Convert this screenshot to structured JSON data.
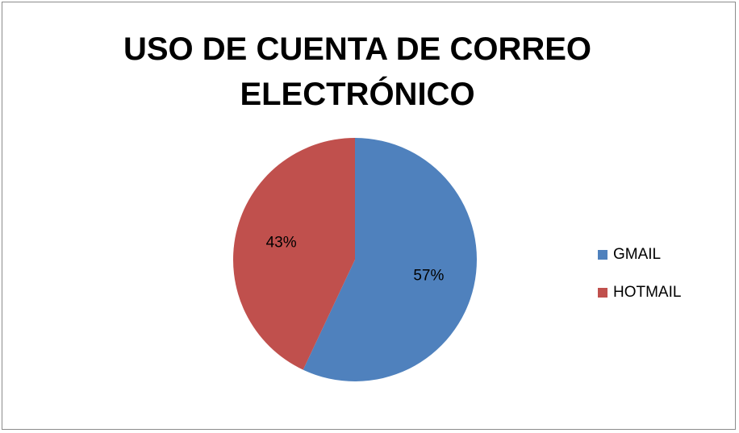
{
  "chart_data": {
    "type": "pie",
    "title": "USO DE CUENTA DE CORREO ELECTRÓNICO",
    "categories": [
      "GMAIL",
      "HOTMAIL"
    ],
    "values": [
      57,
      43
    ],
    "data_labels": [
      "57%",
      "43%"
    ],
    "colors": [
      "#4F81BD",
      "#C0504D"
    ],
    "legend_position": "right"
  }
}
